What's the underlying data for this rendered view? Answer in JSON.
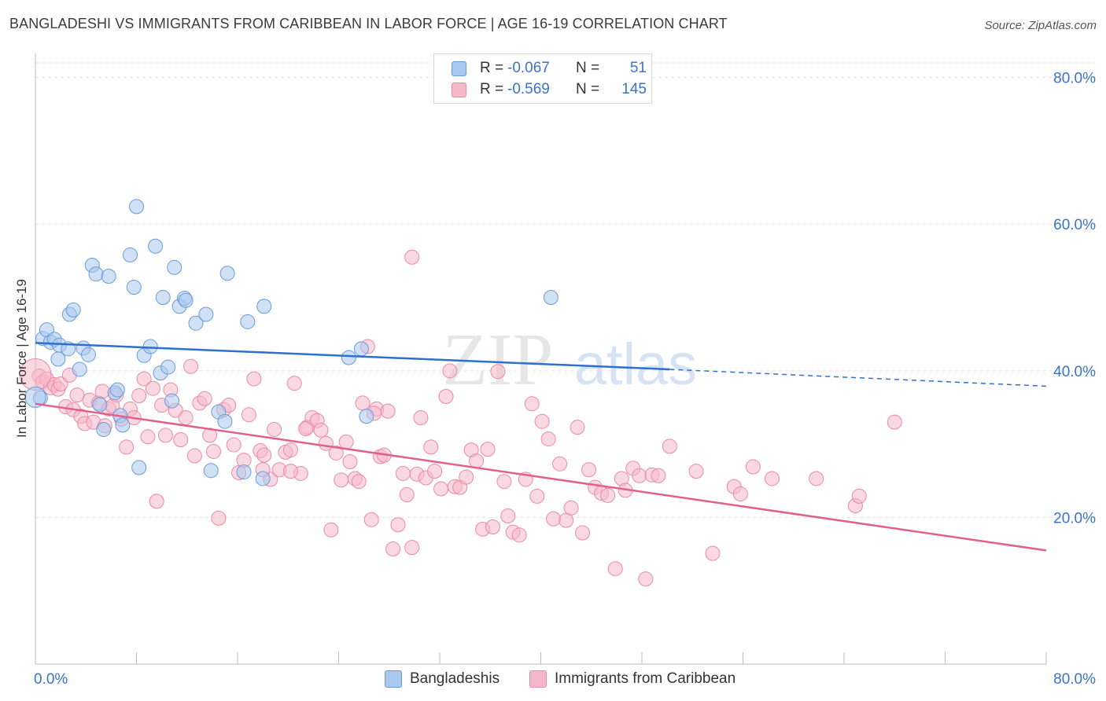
{
  "title": "BANGLADESHI VS IMMIGRANTS FROM CARIBBEAN IN LABOR FORCE | AGE 16-19 CORRELATION CHART",
  "source": "Source: ZipAtlas.com",
  "watermark": {
    "zip": "ZIP",
    "atlas": "atlas"
  },
  "legend": {
    "rows": [
      {
        "r_label": "R =",
        "r_value": "-0.067",
        "n_label": "N =",
        "n_value": "51"
      },
      {
        "r_label": "R =",
        "r_value": "-0.569",
        "n_label": "N =",
        "n_value": "145"
      }
    ]
  },
  "bottom_legend": {
    "series1": "Bangladeshis",
    "series2": "Immigrants from Caribbean"
  },
  "colors": {
    "series1_fill": "#a9c8ee",
    "series1_stroke": "#6a9bd8",
    "series1_line": "#2f6fce",
    "series2_fill": "#f5b8cb",
    "series2_stroke": "#e98aa8",
    "series2_line": "#e0608e",
    "tick_label": "#3a73c7",
    "grid": "#e3e3e3",
    "axis": "#bbbbbb"
  },
  "chart_data": {
    "type": "scatter",
    "title": "BANGLADESHI VS IMMIGRANTS FROM CARIBBEAN IN LABOR FORCE | AGE 16-19 CORRELATION CHART",
    "xlabel": "",
    "ylabel": "In Labor Force | Age 16-19",
    "xlim": [
      0,
      80
    ],
    "ylim": [
      0,
      82
    ],
    "x_tick_labels": [
      "0.0%",
      "80.0%"
    ],
    "y_ticks": [
      20,
      40,
      60,
      80
    ],
    "y_tick_labels": [
      "20.0%",
      "40.0%",
      "60.0%",
      "80.0%"
    ],
    "grid": true,
    "legend_position": "top-center",
    "series": [
      {
        "name": "Bangladeshis",
        "r": -0.067,
        "n": 51,
        "trend": {
          "x": [
            0,
            50.2
          ],
          "y": [
            43.8,
            40.2
          ],
          "dashed_to": [
            80,
            37.9
          ]
        },
        "points": [
          [
            0.4,
            36.3
          ],
          [
            0.6,
            44.4
          ],
          [
            0.9,
            45.6
          ],
          [
            1.2,
            43.9
          ],
          [
            1.5,
            44.3
          ],
          [
            1.8,
            41.6
          ],
          [
            1.9,
            43.5
          ],
          [
            2.6,
            43.0
          ],
          [
            2.7,
            47.7
          ],
          [
            3.0,
            48.3
          ],
          [
            3.5,
            40.2
          ],
          [
            3.8,
            43.1
          ],
          [
            4.2,
            42.2
          ],
          [
            4.5,
            54.4
          ],
          [
            4.8,
            53.2
          ],
          [
            5.1,
            35.4
          ],
          [
            5.4,
            32.0
          ],
          [
            5.8,
            52.9
          ],
          [
            6.3,
            37.0
          ],
          [
            6.5,
            37.4
          ],
          [
            6.7,
            33.9
          ],
          [
            6.9,
            32.6
          ],
          [
            7.5,
            55.8
          ],
          [
            7.8,
            51.4
          ],
          [
            8.0,
            62.4
          ],
          [
            8.2,
            26.8
          ],
          [
            8.6,
            42.1
          ],
          [
            9.1,
            43.3
          ],
          [
            9.5,
            57.0
          ],
          [
            9.9,
            39.7
          ],
          [
            10.1,
            50.0
          ],
          [
            10.5,
            40.5
          ],
          [
            10.8,
            35.9
          ],
          [
            11.0,
            54.1
          ],
          [
            11.4,
            48.8
          ],
          [
            11.8,
            49.9
          ],
          [
            11.9,
            49.6
          ],
          [
            12.7,
            46.5
          ],
          [
            13.5,
            47.7
          ],
          [
            13.9,
            26.4
          ],
          [
            14.5,
            34.4
          ],
          [
            15.0,
            33.1
          ],
          [
            15.2,
            53.3
          ],
          [
            16.5,
            26.2
          ],
          [
            16.8,
            46.7
          ],
          [
            18.0,
            25.3
          ],
          [
            18.1,
            48.8
          ],
          [
            24.8,
            41.8
          ],
          [
            25.8,
            43.0
          ],
          [
            26.2,
            33.8
          ],
          [
            40.8,
            50.0
          ]
        ]
      },
      {
        "name": "Immigrants from Caribbean",
        "r": -0.569,
        "n": 145,
        "trend": {
          "x": [
            0,
            80
          ],
          "y": [
            35.5,
            15.5
          ]
        },
        "points": [
          [
            0.3,
            39.3
          ],
          [
            0.6,
            38.5
          ],
          [
            0.9,
            38.9
          ],
          [
            1.2,
            37.7
          ],
          [
            1.5,
            38.1
          ],
          [
            1.8,
            37.5
          ],
          [
            2.0,
            38.2
          ],
          [
            2.4,
            35.1
          ],
          [
            2.7,
            39.4
          ],
          [
            3.0,
            34.7
          ],
          [
            3.3,
            36.7
          ],
          [
            3.6,
            33.8
          ],
          [
            3.9,
            32.8
          ],
          [
            4.3,
            36.0
          ],
          [
            4.6,
            33.0
          ],
          [
            5.0,
            35.6
          ],
          [
            5.3,
            37.2
          ],
          [
            5.5,
            32.5
          ],
          [
            5.8,
            34.8
          ],
          [
            6.1,
            35.2
          ],
          [
            6.4,
            36.7
          ],
          [
            6.8,
            33.4
          ],
          [
            7.2,
            29.6
          ],
          [
            7.5,
            34.8
          ],
          [
            7.8,
            33.6
          ],
          [
            8.2,
            36.6
          ],
          [
            8.6,
            38.9
          ],
          [
            8.9,
            31.0
          ],
          [
            9.3,
            37.6
          ],
          [
            9.6,
            22.2
          ],
          [
            10.0,
            35.3
          ],
          [
            10.3,
            31.2
          ],
          [
            10.7,
            37.4
          ],
          [
            11.1,
            34.6
          ],
          [
            11.5,
            30.6
          ],
          [
            11.9,
            33.6
          ],
          [
            12.3,
            40.6
          ],
          [
            12.6,
            28.4
          ],
          [
            13.0,
            35.6
          ],
          [
            13.4,
            36.2
          ],
          [
            13.8,
            31.2
          ],
          [
            14.1,
            29.0
          ],
          [
            14.5,
            19.9
          ],
          [
            14.9,
            34.7
          ],
          [
            15.3,
            35.3
          ],
          [
            15.7,
            29.9
          ],
          [
            16.1,
            26.1
          ],
          [
            16.5,
            27.8
          ],
          [
            16.9,
            34.0
          ],
          [
            17.3,
            38.9
          ],
          [
            17.8,
            29.1
          ],
          [
            18.1,
            28.5
          ],
          [
            18.6,
            25.2
          ],
          [
            18.9,
            32.0
          ],
          [
            19.3,
            26.5
          ],
          [
            19.8,
            28.9
          ],
          [
            20.2,
            29.2
          ],
          [
            20.5,
            38.3
          ],
          [
            21.0,
            26.0
          ],
          [
            21.5,
            32.3
          ],
          [
            21.9,
            33.6
          ],
          [
            22.3,
            33.2
          ],
          [
            22.6,
            31.9
          ],
          [
            23.0,
            30.1
          ],
          [
            23.4,
            18.3
          ],
          [
            23.8,
            28.8
          ],
          [
            24.2,
            25.1
          ],
          [
            24.6,
            30.3
          ],
          [
            24.9,
            27.6
          ],
          [
            25.3,
            25.3
          ],
          [
            25.6,
            24.9
          ],
          [
            25.9,
            35.6
          ],
          [
            26.3,
            43.3
          ],
          [
            26.6,
            19.7
          ],
          [
            27.0,
            34.8
          ],
          [
            27.3,
            28.3
          ],
          [
            27.6,
            28.5
          ],
          [
            27.9,
            34.5
          ],
          [
            28.3,
            15.7
          ],
          [
            28.7,
            19.0
          ],
          [
            29.1,
            26.0
          ],
          [
            29.4,
            23.1
          ],
          [
            29.8,
            15.9
          ],
          [
            30.2,
            25.9
          ],
          [
            30.5,
            33.6
          ],
          [
            30.9,
            25.4
          ],
          [
            31.3,
            29.6
          ],
          [
            31.6,
            26.3
          ],
          [
            32.1,
            23.9
          ],
          [
            32.5,
            36.5
          ],
          [
            32.8,
            40.0
          ],
          [
            33.2,
            24.2
          ],
          [
            33.6,
            24.1
          ],
          [
            34.1,
            25.5
          ],
          [
            34.5,
            29.2
          ],
          [
            34.9,
            27.7
          ],
          [
            35.4,
            18.4
          ],
          [
            35.8,
            29.3
          ],
          [
            36.2,
            18.7
          ],
          [
            36.6,
            39.9
          ],
          [
            37.1,
            24.9
          ],
          [
            37.4,
            20.2
          ],
          [
            37.8,
            18.0
          ],
          [
            38.3,
            17.6
          ],
          [
            38.8,
            25.2
          ],
          [
            39.3,
            35.5
          ],
          [
            39.7,
            22.9
          ],
          [
            40.1,
            33.1
          ],
          [
            40.6,
            30.7
          ],
          [
            41.0,
            19.8
          ],
          [
            41.5,
            27.3
          ],
          [
            42.0,
            19.6
          ],
          [
            42.4,
            21.3
          ],
          [
            42.9,
            32.3
          ],
          [
            43.3,
            17.9
          ],
          [
            43.8,
            26.5
          ],
          [
            44.3,
            24.1
          ],
          [
            44.8,
            23.3
          ],
          [
            45.3,
            23.0
          ],
          [
            45.9,
            13.0
          ],
          [
            46.4,
            25.3
          ],
          [
            46.7,
            23.7
          ],
          [
            47.3,
            26.7
          ],
          [
            47.8,
            25.7
          ],
          [
            48.3,
            11.6
          ],
          [
            48.8,
            25.8
          ],
          [
            49.3,
            25.7
          ],
          [
            50.2,
            29.7
          ],
          [
            52.3,
            26.3
          ],
          [
            53.6,
            15.1
          ],
          [
            55.3,
            24.2
          ],
          [
            55.8,
            23.2
          ],
          [
            56.8,
            26.9
          ],
          [
            58.3,
            25.3
          ],
          [
            61.8,
            25.3
          ],
          [
            64.9,
            21.6
          ],
          [
            65.2,
            22.9
          ],
          [
            68.0,
            33.0
          ],
          [
            18.0,
            26.5
          ],
          [
            20.2,
            26.3
          ],
          [
            21.4,
            32.1
          ],
          [
            26.8,
            34.2
          ],
          [
            29.8,
            55.5
          ]
        ]
      }
    ]
  }
}
